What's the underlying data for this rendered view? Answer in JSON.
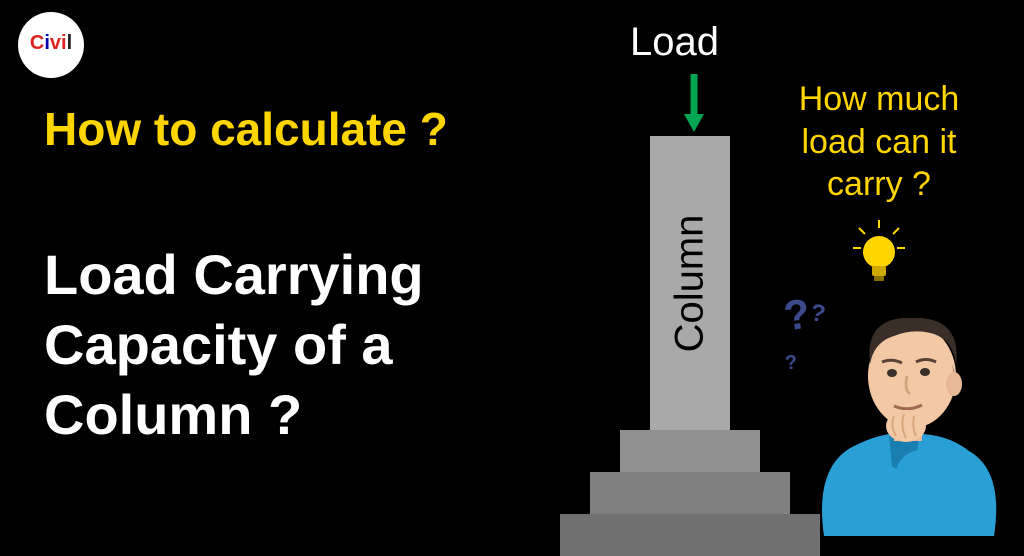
{
  "logo": {
    "text": "Civil"
  },
  "heading": {
    "yellow": "How to calculate ?",
    "white": "Load Carrying\nCapacity of a\nColumn ?"
  },
  "diagram": {
    "load_label": "Load",
    "column_label": "Column",
    "arrow_color": "#00a651",
    "column_color": "#a9a9a9",
    "footing_colors": [
      "#909090",
      "#808080",
      "#707070"
    ]
  },
  "right": {
    "question": "How much load can it carry ?",
    "question_color": "#ffd500",
    "bulb_color": "#ffd500",
    "qmark_color": "#3b4a8a"
  },
  "background_color": "#000000"
}
